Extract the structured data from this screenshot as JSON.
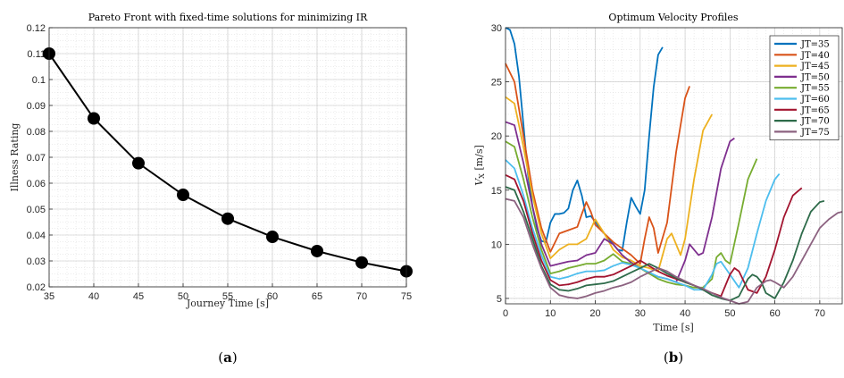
{
  "chart_data": [
    {
      "type": "line",
      "title": "Pareto Front with fixed-time solutions for minimizing IR",
      "xlabel": "Journey Time [s]",
      "ylabel": "Illness Rating",
      "xlim": [
        35,
        75
      ],
      "ylim": [
        0.02,
        0.12
      ],
      "xticks": [
        "35",
        "40",
        "45",
        "50",
        "55",
        "60",
        "65",
        "70",
        "75"
      ],
      "yticks": [
        "0.02",
        "0.03",
        "0.04",
        "0.05",
        "0.06",
        "0.07",
        "0.08",
        "0.09",
        "0.1",
        "0.11",
        "0.12"
      ],
      "grid": true,
      "x": [
        35,
        40,
        45,
        50,
        55,
        60,
        65,
        70,
        75
      ],
      "y": [
        0.11,
        0.085,
        0.0677,
        0.0555,
        0.0463,
        0.0393,
        0.0338,
        0.0294,
        0.026
      ],
      "color": "#000000",
      "caption": "a"
    },
    {
      "type": "line",
      "title": "Optimum Velocity Profiles",
      "xlabel": "Time [s]",
      "ylabel_main": "V",
      "ylabel_sub": "X",
      "ylabel_unit": " [m/s]",
      "xlim": [
        0,
        75
      ],
      "ylim": [
        4.5,
        30
      ],
      "xticks": [
        "0",
        "10",
        "20",
        "30",
        "40",
        "50",
        "60",
        "70"
      ],
      "yticks": [
        "5",
        "10",
        "15",
        "20",
        "25",
        "30"
      ],
      "grid": true,
      "legend_position": "top-right",
      "caption": "b",
      "series": [
        {
          "name": "JT=35",
          "color": "#0072BD",
          "x": [
            0,
            1,
            2,
            3,
            4,
            5,
            6,
            7,
            8,
            9,
            10,
            11,
            12,
            13,
            14,
            15,
            16,
            17,
            18,
            19,
            20,
            21,
            22,
            23,
            24,
            25,
            26,
            27,
            28,
            29,
            30,
            31,
            32,
            33,
            34,
            35
          ],
          "y": [
            30,
            29.8,
            28.5,
            25.5,
            21,
            16.5,
            13.5,
            11.5,
            10.3,
            10.2,
            12,
            12.8,
            12.8,
            12.9,
            13.3,
            15,
            15.9,
            14.5,
            12.5,
            12.6,
            12.1,
            11.5,
            11,
            10.5,
            10,
            9.5,
            9.4,
            12,
            14.3,
            13.5,
            12.8,
            15,
            20,
            24.5,
            27.5,
            28.2
          ]
        },
        {
          "name": "JT=40",
          "color": "#D95319",
          "x": [
            0,
            2,
            4,
            6,
            8,
            10,
            12,
            14,
            16,
            17,
            18,
            19,
            20,
            22,
            24,
            26,
            28,
            30,
            31,
            32,
            33,
            34,
            36,
            38,
            40,
            41
          ],
          "y": [
            26.7,
            25,
            20,
            15,
            11.5,
            9.3,
            11,
            11.3,
            11.6,
            12.8,
            13.9,
            13,
            11.8,
            11,
            10.2,
            9.6,
            9,
            8.2,
            10.5,
            12.5,
            11.5,
            9.2,
            12,
            18.5,
            23.5,
            24.6
          ]
        },
        {
          "name": "JT=45",
          "color": "#EDB120",
          "x": [
            0,
            2,
            4,
            6,
            8,
            10,
            12,
            14,
            16,
            18,
            20,
            22,
            24,
            26,
            28,
            30,
            32,
            34,
            36,
            37,
            38,
            39,
            40,
            42,
            44,
            46
          ],
          "y": [
            23.6,
            23,
            19,
            14.5,
            11,
            8.7,
            9.5,
            10,
            10,
            10.5,
            12.3,
            11,
            9.5,
            8.8,
            8.5,
            8,
            7.8,
            7.5,
            10.5,
            11,
            10,
            9,
            10.5,
            16,
            20.5,
            22
          ]
        },
        {
          "name": "JT=50",
          "color": "#7E2F8E",
          "x": [
            0,
            2,
            4,
            6,
            8,
            10,
            12,
            14,
            16,
            18,
            20,
            22,
            24,
            26,
            28,
            30,
            32,
            34,
            36,
            38,
            40,
            41,
            42,
            43,
            44,
            46,
            48,
            50,
            51
          ],
          "y": [
            21.3,
            21,
            17.5,
            13.5,
            10,
            8,
            8.2,
            8.4,
            8.5,
            9,
            9.2,
            10.5,
            10,
            9,
            8.3,
            7.8,
            7.3,
            7,
            6.8,
            6.5,
            8.5,
            10,
            9.5,
            9,
            9.2,
            12.5,
            17,
            19.5,
            19.8
          ]
        },
        {
          "name": "JT=55",
          "color": "#77AC30",
          "x": [
            0,
            2,
            4,
            6,
            8,
            10,
            12,
            14,
            16,
            18,
            20,
            22,
            24,
            26,
            28,
            30,
            32,
            34,
            36,
            38,
            40,
            42,
            44,
            46,
            47,
            48,
            49,
            50,
            52,
            54,
            56
          ],
          "y": [
            19.5,
            19,
            16,
            12.5,
            9.5,
            7.3,
            7.5,
            7.8,
            8,
            8.2,
            8.2,
            8.5,
            9.1,
            8.4,
            8.2,
            7.8,
            7.3,
            6.8,
            6.5,
            6.3,
            6.2,
            6,
            6,
            6.8,
            8.8,
            9.2,
            8.5,
            8.2,
            12,
            16,
            17.9
          ]
        },
        {
          "name": "JT=60",
          "color": "#4DBEEE",
          "x": [
            0,
            2,
            4,
            6,
            8,
            10,
            12,
            14,
            16,
            18,
            20,
            22,
            24,
            26,
            28,
            30,
            32,
            34,
            36,
            38,
            40,
            42,
            44,
            46,
            47,
            48,
            50,
            52,
            54,
            56,
            58,
            60,
            61
          ],
          "y": [
            17.8,
            17,
            14.5,
            11.5,
            9,
            7,
            6.8,
            7,
            7.3,
            7.5,
            7.5,
            7.6,
            8,
            8.3,
            8.1,
            7.8,
            7.4,
            7,
            6.8,
            6.5,
            6.2,
            5.8,
            5.8,
            7.2,
            8.2,
            8.4,
            7.2,
            6,
            7.8,
            11,
            14,
            16,
            16.5
          ]
        },
        {
          "name": "JT=65",
          "color": "#A2142F",
          "x": [
            0,
            2,
            4,
            6,
            8,
            10,
            12,
            14,
            16,
            18,
            20,
            22,
            24,
            26,
            28,
            30,
            32,
            34,
            36,
            38,
            40,
            42,
            44,
            46,
            48,
            50,
            51,
            52,
            54,
            56,
            58,
            60,
            62,
            64,
            66
          ],
          "y": [
            16.4,
            16,
            14,
            11,
            8.5,
            6.7,
            6.2,
            6.3,
            6.5,
            6.8,
            7,
            7,
            7.2,
            7.6,
            8,
            8.5,
            8,
            7.5,
            7.1,
            6.8,
            6.5,
            6.2,
            5.8,
            5.5,
            5.2,
            7.2,
            7.8,
            7.5,
            5.8,
            5.5,
            7,
            9.5,
            12.5,
            14.5,
            15.2
          ]
        },
        {
          "name": "JT=70",
          "color": "#2E6B4A",
          "x": [
            0,
            2,
            4,
            6,
            8,
            10,
            12,
            14,
            16,
            18,
            20,
            22,
            24,
            26,
            28,
            30,
            32,
            34,
            36,
            38,
            40,
            42,
            44,
            46,
            48,
            50,
            52,
            54,
            55,
            56,
            57,
            58,
            60,
            62,
            64,
            66,
            68,
            70,
            71
          ],
          "y": [
            15.3,
            15,
            13,
            10.5,
            8,
            6.3,
            5.8,
            5.7,
            5.9,
            6.2,
            6.3,
            6.4,
            6.6,
            7,
            7.4,
            7.8,
            8.2,
            7.8,
            7.3,
            6.9,
            6.5,
            6.2,
            5.8,
            5.3,
            5,
            4.8,
            5.2,
            6.8,
            7.2,
            7,
            6.5,
            5.5,
            5,
            6.5,
            8.5,
            11,
            13,
            13.9,
            14
          ]
        },
        {
          "name": "JT=75",
          "color": "#8C6280",
          "x": [
            0,
            2,
            4,
            6,
            8,
            10,
            12,
            14,
            16,
            18,
            20,
            22,
            24,
            26,
            28,
            30,
            32,
            34,
            36,
            38,
            40,
            42,
            44,
            46,
            48,
            50,
            52,
            54,
            56,
            58,
            59,
            60,
            62,
            64,
            66,
            68,
            70,
            72,
            74,
            75
          ],
          "y": [
            14.2,
            14,
            12.5,
            10,
            7.8,
            6,
            5.3,
            5.1,
            5,
            5.2,
            5.5,
            5.7,
            6,
            6.2,
            6.5,
            7,
            7.4,
            7.8,
            7.5,
            7,
            6.6,
            6.2,
            5.9,
            5.5,
            5.1,
            4.8,
            4.5,
            4.7,
            6,
            6.6,
            6.7,
            6.5,
            6,
            7,
            8.5,
            10,
            11.5,
            12.3,
            12.9,
            13
          ]
        }
      ]
    }
  ]
}
